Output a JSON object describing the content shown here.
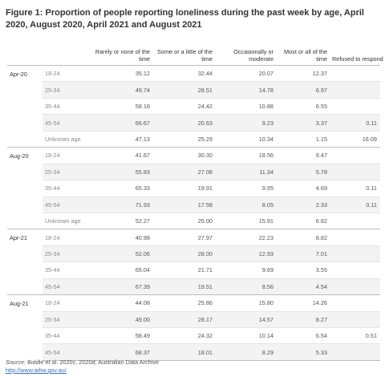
{
  "title": "Figure 1: Proportion of people reporting loneliness during the past week by age, April 2020, August 2020, April 2021 and August 2021",
  "source": {
    "label": "Source:",
    "text": " Biddle et al. 2020c, 2020d; Australian Data Archive",
    "link": "http://www.aihw.gov.au/"
  },
  "chart_data": {
    "type": "table",
    "title": "Figure 1: Proportion of people reporting loneliness during the past week by age, April 2020, August 2020, April 2021 and August 2021",
    "columns": [
      "Rarely or none of the time",
      "Some or a little of the time",
      "Occasionally or moderate",
      "Most or all of the time",
      "Refused to respond"
    ],
    "groups": [
      {
        "period": "Apr-20",
        "rows": [
          {
            "age": "18-24",
            "values": [
              "35.12",
              "32.44",
              "20.07",
              "12.37",
              ""
            ]
          },
          {
            "age": "25-34",
            "values": [
              "49.74",
              "28.51",
              "14.78",
              "6.97",
              ""
            ]
          },
          {
            "age": "35-44",
            "values": [
              "58.16",
              "24.42",
              "10.88",
              "6.55",
              ""
            ]
          },
          {
            "age": "45-54",
            "values": [
              "66.67",
              "20.63",
              "9.23",
              "3.37",
              "0.11"
            ]
          },
          {
            "age": "Unknown age",
            "values": [
              "47.13",
              "25.29",
              "10.34",
              "1.15",
              "16.09"
            ]
          }
        ]
      },
      {
        "period": "Aug-20",
        "rows": [
          {
            "age": "18-24",
            "values": [
              "41.67",
              "30.30",
              "18.56",
              "9.47",
              ""
            ]
          },
          {
            "age": "25-34",
            "values": [
              "55.83",
              "27.06",
              "11.34",
              "5.78",
              ""
            ]
          },
          {
            "age": "35-44",
            "values": [
              "65.33",
              "19.91",
              "9.95",
              "4.69",
              "0.11"
            ]
          },
          {
            "age": "45-54",
            "values": [
              "71.93",
              "17.58",
              "8.05",
              "2.33",
              "0.11"
            ]
          },
          {
            "age": "Unknown age",
            "values": [
              "52.27",
              "25.00",
              "15.91",
              "6.82",
              ""
            ]
          }
        ]
      },
      {
        "period": "Apr-21",
        "rows": [
          {
            "age": "18-24",
            "values": [
              "40.98",
              "27.97",
              "22.23",
              "8.82",
              ""
            ]
          },
          {
            "age": "25-34",
            "values": [
              "52.06",
              "28.00",
              "12.93",
              "7.01",
              ""
            ]
          },
          {
            "age": "35-44",
            "values": [
              "65.04",
              "21.71",
              "9.69",
              "3.55",
              ""
            ]
          },
          {
            "age": "45-54",
            "values": [
              "67.39",
              "19.51",
              "8.56",
              "4.54",
              ""
            ]
          }
        ]
      },
      {
        "period": "Aug-21",
        "rows": [
          {
            "age": "18-24",
            "values": [
              "44.08",
              "25.86",
              "15.80",
              "14.26",
              ""
            ]
          },
          {
            "age": "25-34",
            "values": [
              "49.00",
              "28.17",
              "14.57",
              "8.27",
              ""
            ]
          },
          {
            "age": "35-44",
            "values": [
              "58.49",
              "24.32",
              "10.14",
              "6.54",
              "0.51"
            ]
          },
          {
            "age": "45-54",
            "values": [
              "68.37",
              "18.01",
              "8.29",
              "5.33",
              ""
            ]
          }
        ]
      }
    ]
  }
}
